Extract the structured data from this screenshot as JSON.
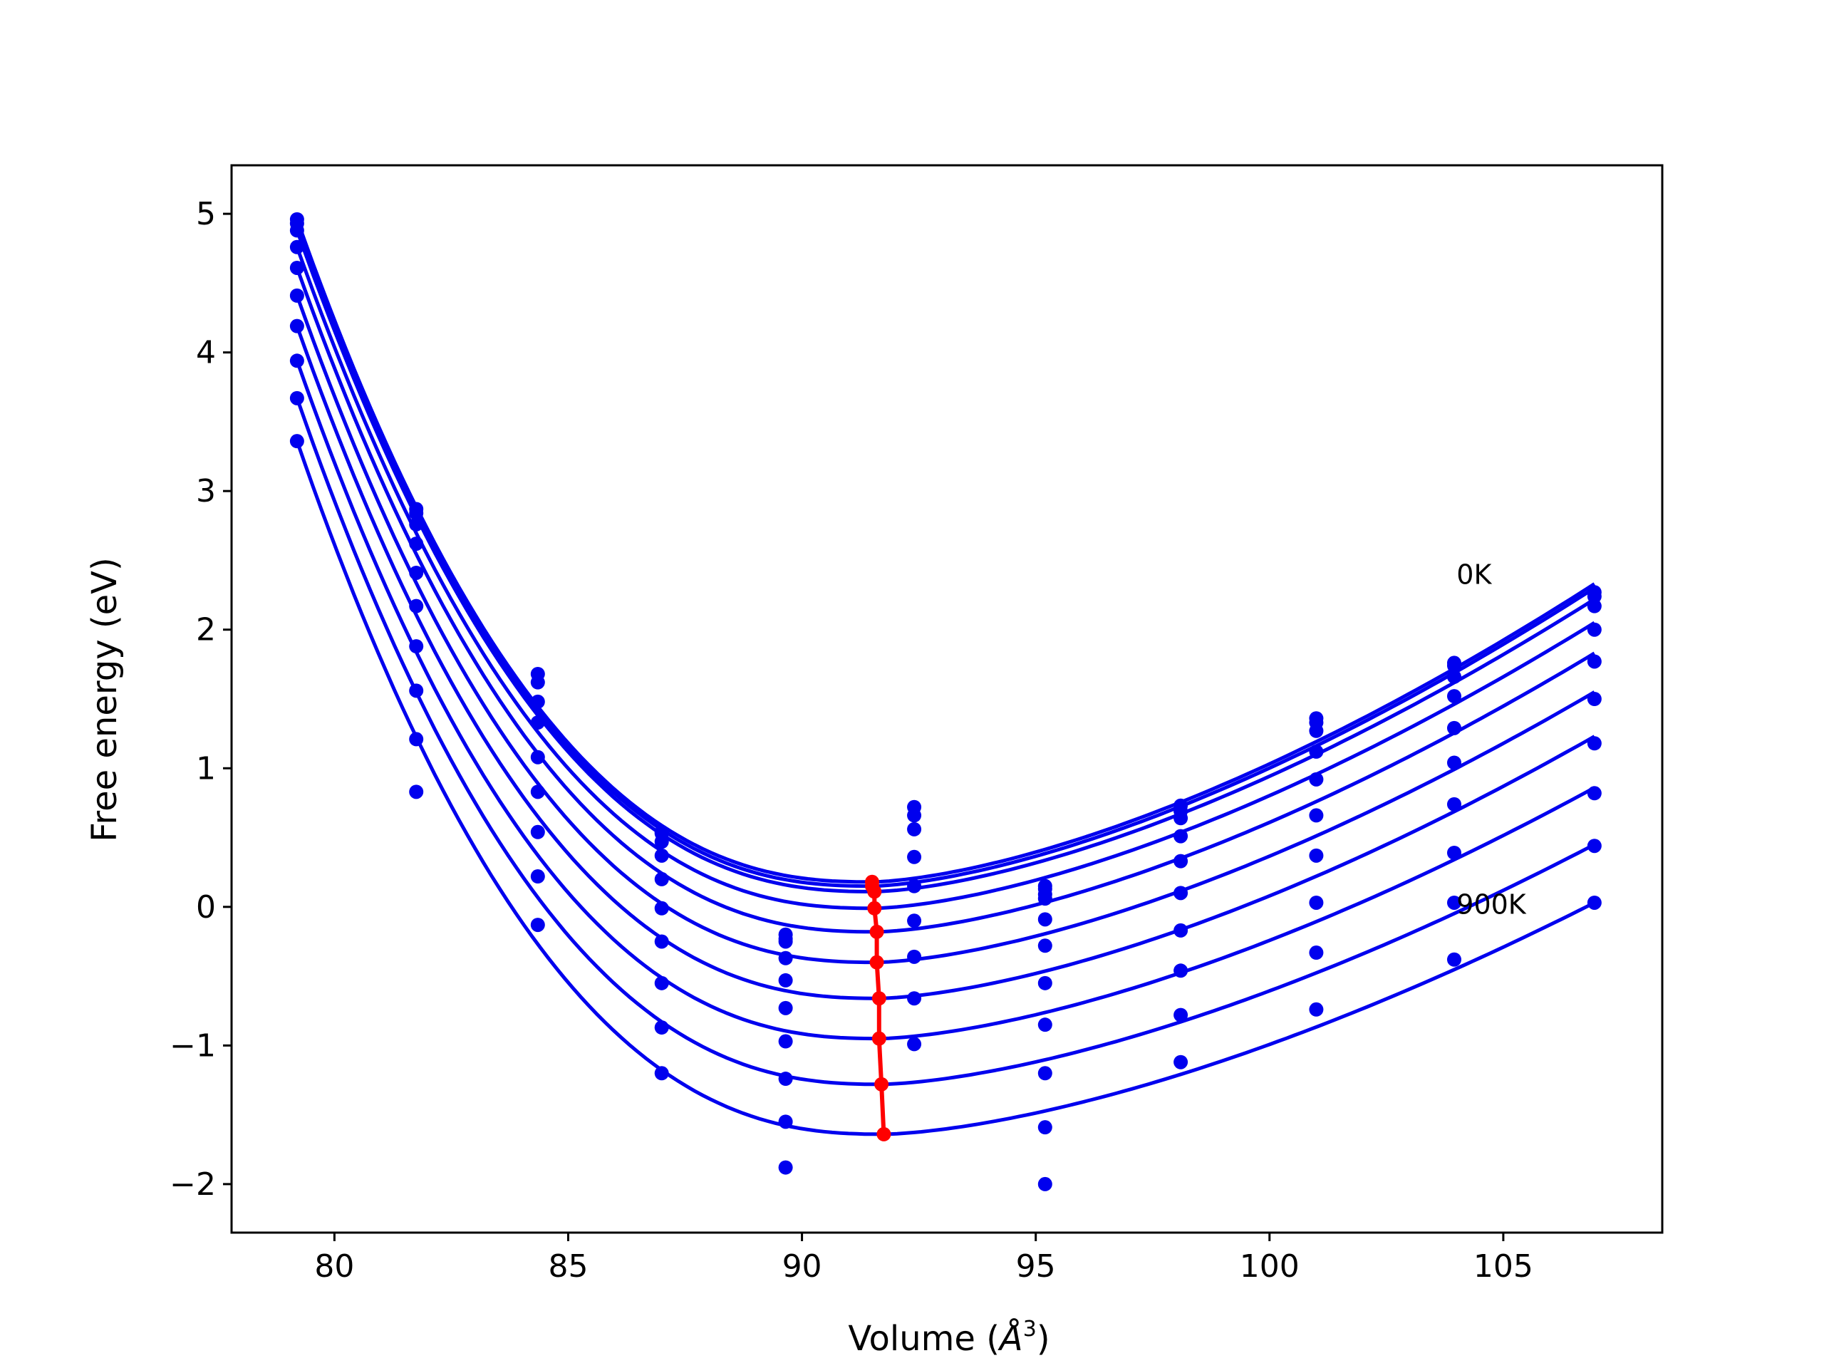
{
  "chart_data": {
    "type": "scatter",
    "title": "",
    "xlabel": "Volume (",
    "xlabel_symbol": "Å",
    "xlabel_power": "3",
    "xlabel_close": ")",
    "ylabel": "Free energy (eV)",
    "xlim": [
      77.8,
      108.4
    ],
    "ylim": [
      -2.35,
      5.35
    ],
    "xticks": [
      80,
      85,
      90,
      95,
      100,
      105
    ],
    "xtick_labels": [
      "80",
      "85",
      "90",
      "95",
      "100",
      "105"
    ],
    "yticks": [
      -2,
      -1,
      0,
      1,
      2,
      3,
      4,
      5
    ],
    "ytick_labels": [
      "−2",
      "−1",
      "0",
      "1",
      "2",
      "3",
      "4",
      "5"
    ],
    "grid": false,
    "colors": {
      "curves": "#0000ee",
      "points": "#0000ee",
      "minimum": "#ff0000",
      "frame": "#000000"
    },
    "volumes": [
      79.2,
      81.75,
      84.35,
      87.0,
      89.65,
      92.4,
      95.2,
      98.1,
      101.0,
      103.95,
      106.95
    ],
    "series": [
      {
        "label": "0K",
        "min_v": 91.5,
        "min_f": 0.18,
        "fit_right": 2.33,
        "points": [
          4.96,
          2.87,
          1.68,
          0.54,
          -0.2,
          0.72,
          0.15,
          0.73,
          1.36,
          1.76,
          2.27
        ]
      },
      {
        "min_v": 91.5,
        "min_f": 0.15,
        "fit_right": 2.3,
        "points": [
          4.93,
          2.84,
          1.62,
          0.53,
          -0.23,
          0.66,
          0.13,
          0.69,
          1.33,
          1.74,
          2.24
        ]
      },
      {
        "min_v": 91.55,
        "min_f": 0.11,
        "fit_right": 2.22,
        "points": [
          4.88,
          2.76,
          1.48,
          0.47,
          -0.25,
          0.56,
          0.09,
          0.64,
          1.27,
          1.66,
          2.17
        ]
      },
      {
        "min_v": 91.55,
        "min_f": -0.01,
        "fit_right": 2.05,
        "points": [
          4.76,
          2.62,
          1.33,
          0.37,
          -0.37,
          0.36,
          0.06,
          0.51,
          1.12,
          1.52,
          2.0
        ]
      },
      {
        "min_v": 91.6,
        "min_f": -0.18,
        "fit_right": 1.83,
        "points": [
          4.61,
          2.41,
          1.08,
          0.2,
          -0.53,
          0.15,
          -0.09,
          0.33,
          0.92,
          1.29,
          1.77
        ]
      },
      {
        "min_v": 91.6,
        "min_f": -0.4,
        "fit_right": 1.55,
        "points": [
          4.41,
          2.17,
          0.83,
          -0.01,
          -0.73,
          -0.1,
          -0.28,
          0.1,
          0.66,
          1.04,
          1.5
        ]
      },
      {
        "min_v": 91.65,
        "min_f": -0.66,
        "fit_right": 1.23,
        "points": [
          4.19,
          1.88,
          0.54,
          -0.25,
          -0.97,
          -0.36,
          -0.55,
          -0.17,
          0.37,
          0.74,
          1.18
        ]
      },
      {
        "min_v": 91.65,
        "min_f": -0.95,
        "fit_right": 0.86,
        "points": [
          3.94,
          1.56,
          0.22,
          -0.55,
          -1.24,
          -0.66,
          -0.85,
          -0.46,
          0.03,
          0.39,
          0.82
        ]
      },
      {
        "min_v": 91.7,
        "min_f": -1.28,
        "fit_right": 0.45,
        "points": [
          3.67,
          1.21,
          -0.13,
          -0.87,
          -1.55,
          -0.99,
          -1.2,
          -0.78,
          -0.33,
          0.03,
          0.44
        ]
      },
      {
        "label": "900K",
        "min_v": 91.75,
        "min_f": -1.64,
        "fit_right": 0.03,
        "points": [
          3.36,
          0.83,
          null,
          -1.2,
          -1.88,
          null,
          -1.59,
          -1.12,
          -0.74,
          -0.38,
          0.03
        ]
      }
    ],
    "extra_points": [
      {
        "x": 95.2,
        "y": -2.0
      }
    ],
    "annotations": [
      {
        "text": "0K",
        "x": 104.0,
        "y": 2.33
      },
      {
        "text": "900K",
        "x": 104.0,
        "y": -0.05
      }
    ]
  }
}
